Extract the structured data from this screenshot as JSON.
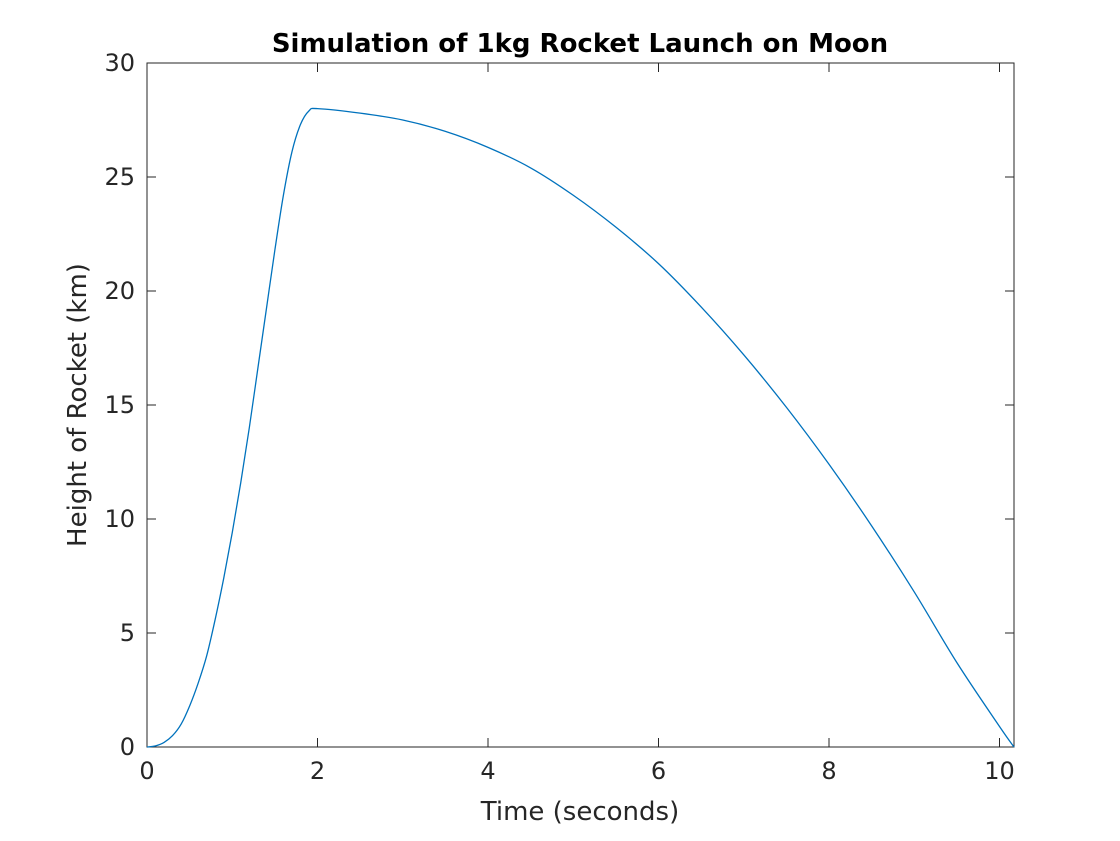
{
  "chart_data": {
    "type": "line",
    "title": "Simulation of 1kg Rocket Launch on Moon",
    "xlabel": "Time (seconds)",
    "ylabel": "Height of Rocket (km)",
    "xlim": [
      0,
      10.17
    ],
    "ylim": [
      0,
      30
    ],
    "xticks": [
      0,
      2,
      4,
      6,
      8,
      10
    ],
    "xtick_labels": [
      "0",
      "2",
      "4",
      "6",
      "8",
      "10"
    ],
    "yticks": [
      0,
      5,
      10,
      15,
      20,
      25,
      30
    ],
    "ytick_labels": [
      "0",
      "5",
      "10",
      "15",
      "20",
      "25",
      "30"
    ],
    "grid": false,
    "legend": "none",
    "box": true,
    "series": [
      {
        "color": "#0072bd",
        "x": [
          0,
          0.1,
          0.2,
          0.3,
          0.4,
          0.5,
          0.6,
          0.7,
          0.8,
          0.9,
          1.0,
          1.1,
          1.2,
          1.3,
          1.4,
          1.5,
          1.6,
          1.7,
          1.8,
          1.9,
          2.0,
          2.5,
          3.0,
          3.5,
          4.0,
          4.5,
          5.0,
          5.5,
          6.0,
          6.5,
          7.0,
          7.5,
          8.0,
          8.5,
          9.0,
          9.5,
          10.0,
          10.17
        ],
        "y": [
          0,
          0.05,
          0.2,
          0.5,
          1.0,
          1.8,
          2.8,
          4.0,
          5.6,
          7.4,
          9.4,
          11.6,
          14.0,
          16.6,
          19.2,
          21.8,
          24.2,
          26.1,
          27.3,
          27.9,
          28.0,
          27.8,
          27.5,
          27.0,
          26.3,
          25.4,
          24.2,
          22.8,
          21.2,
          19.3,
          17.2,
          14.9,
          12.4,
          9.7,
          6.8,
          3.7,
          0.9,
          0
        ]
      }
    ]
  }
}
